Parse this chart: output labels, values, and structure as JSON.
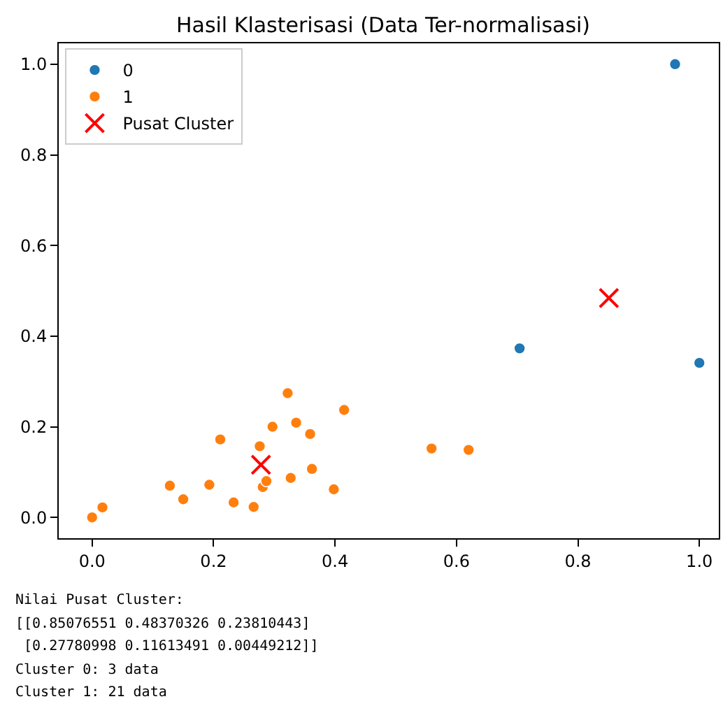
{
  "chart_data": {
    "type": "scatter",
    "title": "Hasil Klasterisasi (Data Ter-normalisasi)",
    "xlim": [
      -0.055,
      1.032
    ],
    "ylim": [
      -0.046,
      1.046
    ],
    "xticks": [
      {
        "value": 0,
        "label": "0.0"
      },
      {
        "value": 0.2,
        "label": "0.2"
      },
      {
        "value": 0.4,
        "label": "0.4"
      },
      {
        "value": 0.6,
        "label": "0.6"
      },
      {
        "value": 0.8,
        "label": "0.8"
      },
      {
        "value": 1,
        "label": "1.0"
      }
    ],
    "yticks": [
      {
        "value": 0,
        "label": "0.0"
      },
      {
        "value": 0.2,
        "label": "0.2"
      },
      {
        "value": 0.4,
        "label": "0.4"
      },
      {
        "value": 0.6,
        "label": "0.6"
      },
      {
        "value": 0.8,
        "label": "0.8"
      },
      {
        "value": 1,
        "label": "1.0"
      }
    ],
    "legend": "top left",
    "series": [
      {
        "name": "0",
        "color": "#1f77b4",
        "marker": "circle",
        "x": [
          0.704,
          1.0,
          0.96
        ],
        "values": [
          0.373,
          0.341,
          1.0
        ]
      },
      {
        "name": "1",
        "color": "#ff7f0e",
        "marker": "circle",
        "x": [
          0.0,
          0.017,
          0.128,
          0.15,
          0.193,
          0.211,
          0.233,
          0.266,
          0.276,
          0.281,
          0.287,
          0.297,
          0.322,
          0.327,
          0.336,
          0.359,
          0.362,
          0.398,
          0.415,
          0.559,
          0.62
        ],
        "values": [
          0.0,
          0.022,
          0.07,
          0.04,
          0.072,
          0.172,
          0.033,
          0.023,
          0.157,
          0.067,
          0.08,
          0.2,
          0.274,
          0.087,
          0.209,
          0.184,
          0.107,
          0.062,
          0.237,
          0.152,
          0.149
        ]
      },
      {
        "name": "Pusat Cluster",
        "color": "#ff0000",
        "marker": "cross",
        "x": [
          0.851,
          0.278
        ],
        "values": [
          0.484,
          0.116
        ]
      }
    ],
    "annotations": [
      "Nilai Pusat Cluster:",
      "[[0.85076551 0.48370326 0.23810443]",
      " [0.27780998 0.11613491 0.00449212]]",
      "Cluster 0: 3 data",
      "Cluster 1: 21 data"
    ]
  }
}
